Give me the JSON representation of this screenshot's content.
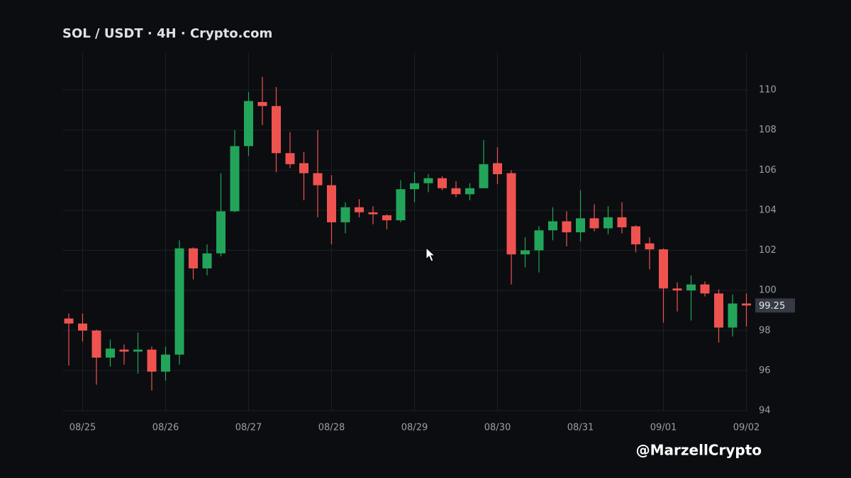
{
  "chart_data": {
    "type": "candlestick",
    "title": "SOL / USDT  ·  4H  ·  Crypto.com",
    "watermark": "@MarzellCrypto",
    "categories": [
      null,
      "08/25",
      null,
      null,
      null,
      null,
      null,
      "08/26",
      null,
      null,
      null,
      null,
      null,
      "08/27",
      null,
      null,
      null,
      null,
      null,
      "08/28",
      null,
      null,
      null,
      null,
      null,
      "08/29",
      null,
      null,
      null,
      null,
      null,
      "08/30",
      null,
      null,
      null,
      null,
      null,
      "08/31",
      null,
      null,
      null,
      null,
      null,
      "09/01",
      null,
      null,
      null,
      null,
      null,
      "09/02"
    ],
    "series": [
      {
        "up_color": "#22a55a",
        "down_color": "#ef5350",
        "open": [
          98.6,
          98.35,
          98.0,
          96.65,
          97.05,
          96.95,
          97.05,
          95.95,
          96.8,
          102.1,
          101.1,
          101.85,
          103.95,
          107.2,
          109.4,
          109.2,
          106.85,
          106.35,
          105.85,
          105.25,
          103.4,
          104.15,
          103.9,
          103.75,
          103.5,
          105.05,
          105.35,
          105.6,
          105.1,
          104.8,
          105.1,
          106.35,
          105.85,
          101.8,
          102.0,
          103.0,
          103.45,
          102.9,
          103.6,
          103.1,
          103.65,
          103.2,
          102.35,
          102.05,
          100.1,
          100.0,
          100.3,
          99.85,
          98.15,
          99.35
        ],
        "high": [
          98.85,
          98.85,
          98.05,
          97.55,
          97.3,
          97.9,
          97.2,
          97.2,
          102.5,
          102.15,
          102.3,
          105.85,
          108.0,
          109.9,
          110.65,
          110.15,
          107.9,
          106.9,
          108.0,
          105.75,
          104.4,
          104.55,
          104.2,
          103.8,
          105.5,
          105.9,
          105.8,
          105.7,
          105.45,
          105.35,
          107.5,
          107.15,
          106.0,
          102.65,
          103.2,
          104.15,
          103.95,
          105.0,
          104.3,
          104.2,
          104.4,
          103.25,
          102.65,
          102.1,
          100.4,
          100.75,
          100.45,
          100.05,
          99.8,
          99.85
        ],
        "low": [
          96.25,
          97.45,
          95.3,
          96.2,
          96.3,
          95.85,
          95.0,
          95.5,
          96.3,
          100.55,
          100.75,
          101.7,
          103.9,
          106.7,
          108.25,
          105.9,
          106.1,
          104.5,
          103.65,
          102.3,
          102.85,
          103.65,
          103.3,
          103.05,
          103.4,
          104.4,
          104.9,
          105.0,
          104.65,
          104.5,
          105.1,
          105.3,
          100.3,
          101.15,
          100.9,
          102.5,
          102.2,
          102.45,
          102.95,
          102.8,
          102.85,
          101.9,
          101.05,
          98.4,
          98.95,
          98.5,
          99.7,
          97.4,
          97.7,
          98.2
        ],
        "close": [
          98.35,
          98.0,
          96.65,
          97.1,
          96.95,
          97.05,
          95.95,
          96.8,
          102.1,
          101.1,
          101.85,
          103.95,
          107.2,
          109.45,
          109.2,
          106.85,
          106.3,
          105.85,
          105.25,
          103.4,
          104.15,
          103.9,
          103.8,
          103.5,
          105.05,
          105.35,
          105.6,
          105.1,
          104.8,
          105.1,
          106.3,
          105.8,
          101.8,
          102.0,
          103.0,
          103.45,
          102.9,
          103.6,
          103.1,
          103.65,
          103.15,
          102.3,
          102.05,
          100.1,
          100.0,
          100.3,
          99.85,
          98.15,
          99.35,
          99.25
        ]
      }
    ],
    "last_price": 99.25,
    "ylim": [
      94,
      111.84
    ],
    "yticks": [
      94,
      96,
      98,
      100,
      102,
      104,
      106,
      108,
      110
    ],
    "grid": true
  }
}
